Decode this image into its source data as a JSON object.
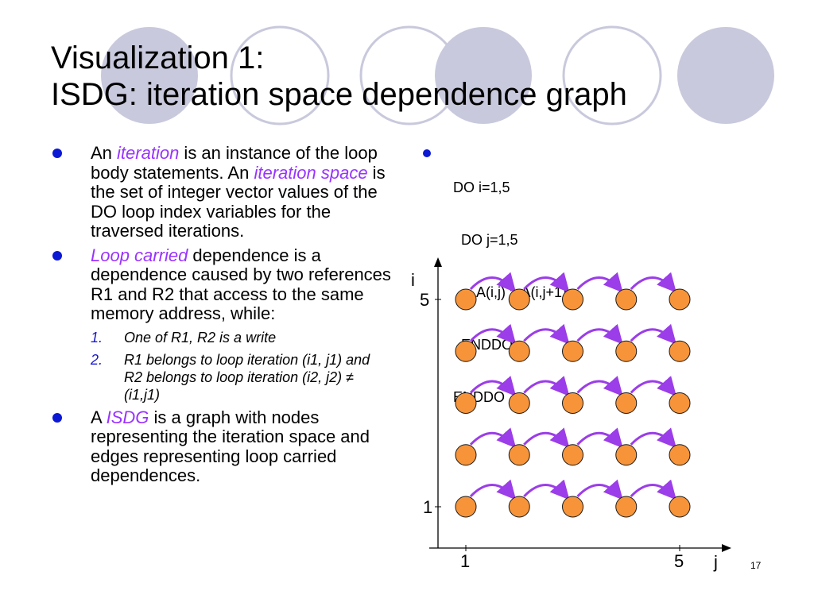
{
  "slide": {
    "title_line1": "Visualization 1:",
    "title_line2": "ISDG: iteration space dependence graph",
    "page_number": "17"
  },
  "left": {
    "b1": {
      "a": "An ",
      "em1": "iteration",
      "b": " is an instance of the loop body statements. An ",
      "em2": "iteration space",
      "c": " is the set of integer vector values of the DO loop index variables for the traversed iterations."
    },
    "b2": {
      "em": "Loop carried",
      "text": " dependence is a dependence caused by two references R1 and R2 that access to the same memory address, while:"
    },
    "sub": [
      {
        "num": "1.",
        "text": "One of R1, R2 is a write"
      },
      {
        "num": "2.",
        "text": "R1 belongs to loop iteration (i1, j1) and R2 belongs to loop iteration (i2, j2) ≠ (i1,j1)"
      }
    ],
    "b3": {
      "a": "A ",
      "em": "ISDG",
      "b": " is a graph with nodes representing the iteration space and edges representing loop carried dependences."
    }
  },
  "code": {
    "lines": [
      "DO i=1,5",
      "  DO j=1,5",
      "      A(i,j) = A(i,j+1)",
      "  ENDDO",
      "ENDDO"
    ]
  },
  "graph": {
    "x_axis_label": "j",
    "y_axis_label": "i",
    "x_ticks": [
      "1",
      "5"
    ],
    "y_ticks": [
      "1",
      "5"
    ],
    "rows": 5,
    "cols": 5,
    "node_color": "#f7943a",
    "edge_color": "#9b3de8",
    "edge_direction": "j+1 to j"
  },
  "colors": {
    "bullet": "#0b18d4",
    "emphasis": "#9933ff",
    "deco_fill": "#c9c9dd"
  }
}
